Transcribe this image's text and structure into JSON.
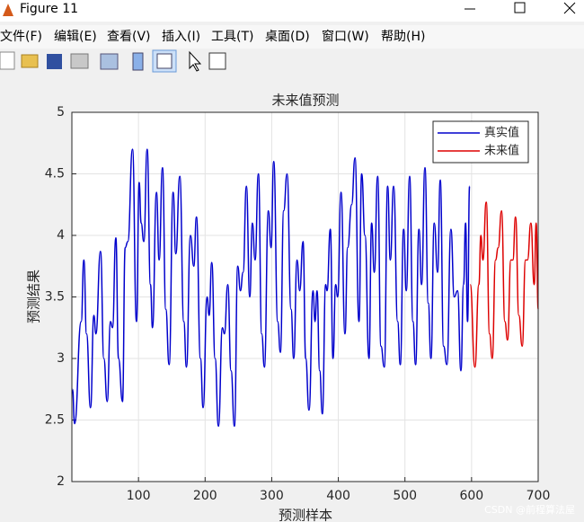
{
  "window": {
    "title": "Figure 11",
    "menu": [
      "文件(F)",
      "编辑(E)",
      "查看(V)",
      "插入(I)",
      "工具(T)",
      "桌面(D)",
      "窗口(W)",
      "帮助(H)"
    ],
    "watermark": "CSDN @前程算法屋"
  },
  "chart_data": {
    "type": "line",
    "title": "未来值预测",
    "x_label": "预测样本",
    "y_label": "预测结果",
    "xlim": [
      0,
      700
    ],
    "xticks": [
      100,
      200,
      300,
      400,
      500,
      600,
      700
    ],
    "ylim": [
      2,
      5
    ],
    "yticks": [
      2,
      2.5,
      3,
      3.5,
      4,
      4.5,
      5
    ],
    "grid": true,
    "legend": "upper right",
    "series": [
      {
        "name": "真实值",
        "color": "#0000cc",
        "x": [
          1,
          4,
          14,
          18,
          22,
          28,
          33,
          36,
          43,
          48,
          53,
          58,
          61,
          66,
          70,
          76,
          80,
          84,
          91,
          97,
          101,
          104,
          108,
          113,
          118,
          121,
          127,
          131,
          136,
          141,
          146,
          152,
          156,
          162,
          168,
          172,
          178,
          183,
          187,
          193,
          197,
          203,
          206,
          210,
          215,
          220,
          226,
          229,
          234,
          239,
          244,
          249,
          253,
          257,
          262,
          267,
          271,
          275,
          280,
          285,
          289,
          295,
          299,
          303,
          309,
          313,
          318,
          323,
          329,
          333,
          338,
          342,
          347,
          351,
          356,
          362,
          365,
          368,
          372,
          376,
          381,
          383,
          388,
          392,
          396,
          399,
          404,
          410,
          414,
          420,
          425,
          431,
          435,
          440,
          446,
          450,
          454,
          459,
          464,
          469,
          474,
          478,
          483,
          489,
          493,
          498,
          502,
          507,
          512,
          516,
          521,
          525,
          530,
          535,
          539,
          544,
          549,
          553,
          558,
          563,
          569,
          574,
          579,
          584,
          588,
          591,
          594,
          597
        ],
        "values": [
          2.75,
          2.47,
          3.3,
          3.8,
          3.2,
          2.6,
          3.35,
          3.2,
          3.87,
          3.0,
          2.65,
          3.3,
          3.25,
          3.98,
          3.0,
          2.65,
          3.9,
          3.95,
          4.7,
          3.3,
          4.43,
          4.1,
          3.95,
          4.7,
          3.6,
          3.25,
          4.35,
          3.8,
          4.55,
          3.4,
          2.95,
          4.35,
          3.85,
          4.48,
          3.3,
          2.93,
          4.0,
          3.75,
          4.15,
          3.0,
          2.6,
          3.5,
          3.35,
          3.78,
          3.0,
          2.45,
          3.25,
          3.2,
          3.6,
          2.9,
          2.45,
          3.75,
          3.55,
          3.7,
          4.4,
          3.5,
          4.1,
          3.8,
          4.5,
          3.2,
          2.93,
          4.2,
          3.9,
          4.6,
          3.3,
          3.05,
          4.2,
          4.5,
          3.4,
          3.0,
          3.8,
          3.55,
          3.95,
          3.0,
          2.58,
          3.55,
          3.3,
          3.55,
          2.9,
          2.55,
          3.6,
          3.55,
          4.05,
          3.0,
          3.6,
          3.5,
          4.35,
          3.2,
          3.9,
          4.25,
          4.63,
          3.3,
          4.5,
          4.0,
          3.0,
          4.1,
          3.7,
          4.48,
          3.1,
          2.93,
          4.4,
          3.8,
          4.4,
          3.3,
          2.95,
          4.05,
          3.55,
          4.48,
          3.3,
          2.95,
          4.05,
          3.6,
          4.55,
          3.45,
          3.0,
          4.1,
          3.7,
          4.45,
          3.1,
          2.95,
          4.05,
          3.5,
          3.55,
          2.9,
          3.6,
          4.1,
          3.3,
          4.4
        ]
      },
      {
        "name": "未来值",
        "color": "#dd0000",
        "x": [
          598,
          605,
          611,
          614,
          617,
          622,
          627,
          631,
          636,
          640,
          645,
          650,
          654,
          659,
          662,
          666,
          671,
          676,
          681,
          684,
          689,
          694,
          697,
          700
        ],
        "values": [
          3.6,
          2.93,
          3.6,
          4.0,
          3.8,
          4.27,
          3.2,
          3.0,
          3.8,
          3.9,
          4.2,
          3.3,
          3.15,
          3.8,
          3.8,
          4.15,
          3.35,
          3.1,
          3.8,
          3.8,
          4.1,
          3.6,
          4.1,
          3.4
        ]
      }
    ]
  }
}
